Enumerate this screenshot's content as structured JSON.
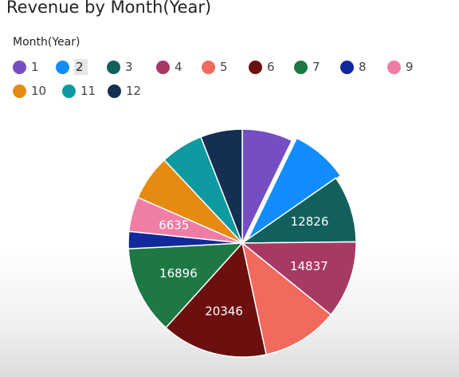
{
  "title": "Revenue by Month(Year)",
  "legend": {
    "title": "Month(Year)",
    "rows": [
      [
        {
          "label": "1",
          "color": "#744EC2"
        },
        {
          "label": "2",
          "color": "#118DFF"
        },
        {
          "label": "3",
          "color": "#12605C"
        },
        {
          "label": "4",
          "color": "#A63A64"
        },
        {
          "label": "5",
          "color": "#F2695E"
        },
        {
          "label": "6",
          "color": "#6B0F0F"
        },
        {
          "label": "7",
          "color": "#1D7844"
        },
        {
          "label": "8",
          "color": "#12299C"
        },
        {
          "label": "9",
          "color": "#F07DA6"
        }
      ],
      [
        {
          "label": "10",
          "color": "#E78A12"
        },
        {
          "label": "11",
          "color": "#0E9AA0"
        },
        {
          "label": "12",
          "color": "#142F4F"
        }
      ]
    ]
  },
  "chart_data": {
    "type": "pie",
    "title": "Revenue by Month(Year)",
    "legend_title": "Month(Year)",
    "legend_position": "top-left",
    "slices": [
      {
        "label": "1",
        "value": 9700,
        "color": "#744EC2",
        "data_label": ""
      },
      {
        "label": "2",
        "value": 11000,
        "color": "#118DFF",
        "data_label": ""
      },
      {
        "label": "3",
        "value": 12826,
        "color": "#12605C",
        "data_label": "12826"
      },
      {
        "label": "4",
        "value": 14837,
        "color": "#A63A64",
        "data_label": "14837"
      },
      {
        "label": "5",
        "value": 14600,
        "color": "#F2695E",
        "data_label": ""
      },
      {
        "label": "6",
        "value": 20346,
        "color": "#6B0F0F",
        "data_label": "20346"
      },
      {
        "label": "7",
        "value": 16896,
        "color": "#1D7844",
        "data_label": "16896"
      },
      {
        "label": "8",
        "value": 3300,
        "color": "#12299C",
        "data_label": ""
      },
      {
        "label": "9",
        "value": 6635,
        "color": "#F07DA6",
        "data_label": "6635"
      },
      {
        "label": "10",
        "value": 8700,
        "color": "#E78A12",
        "data_label": ""
      },
      {
        "label": "11",
        "value": 8200,
        "color": "#0E9AA0",
        "data_label": ""
      },
      {
        "label": "12",
        "value": 8000,
        "color": "#142F4F",
        "data_label": ""
      }
    ]
  }
}
